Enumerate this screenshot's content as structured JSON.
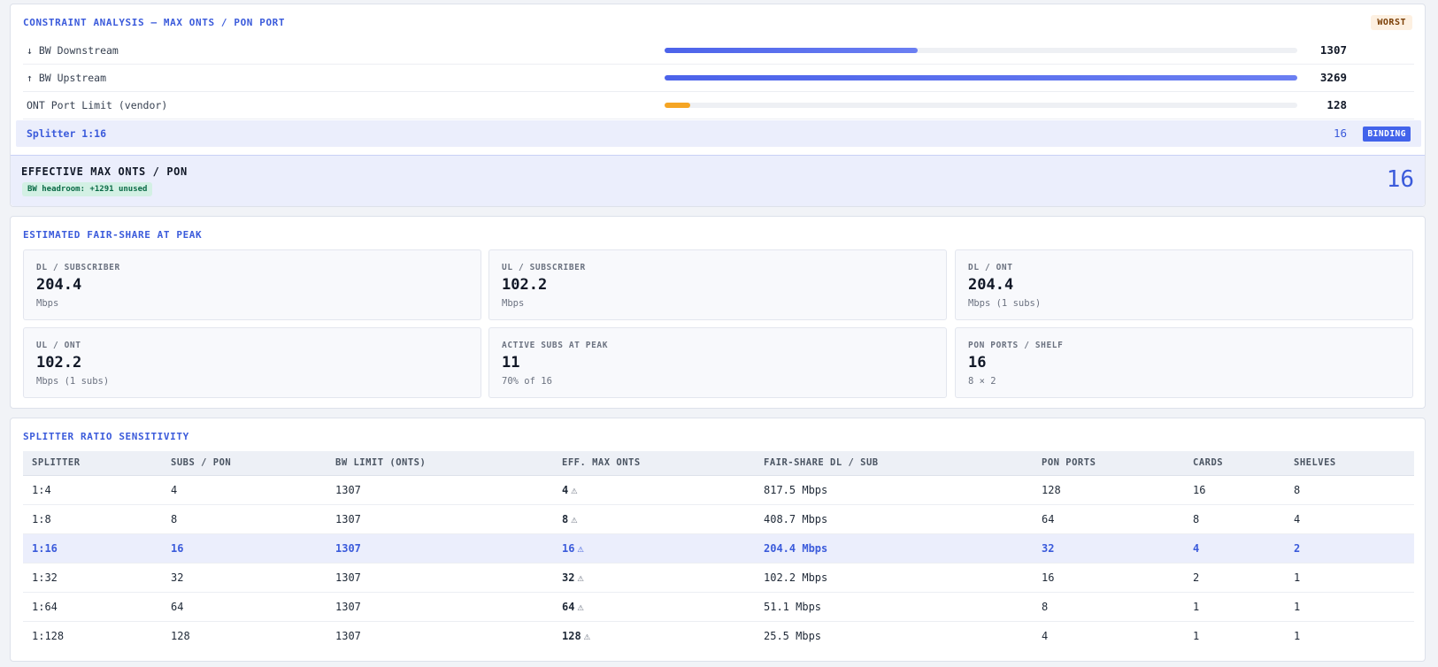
{
  "constraint": {
    "title": "CONSTRAINT ANALYSIS — MAX ONTS / PON PORT",
    "worst_badge": "WORST",
    "rows": [
      {
        "label": "↓ BW Downstream",
        "value": "1307",
        "fill_fraction": 0.4
      },
      {
        "label": "↑ BW Upstream",
        "value": "3269",
        "fill_fraction": 1.0
      },
      {
        "label": "ONT Port Limit (vendor)",
        "value": "128",
        "fill_fraction": 0.04
      }
    ],
    "binding": {
      "label": "Splitter 1:16",
      "value": "16",
      "badge": "BINDING"
    },
    "effective": {
      "title": "EFFECTIVE MAX ONTS / PON",
      "headroom": "BW headroom: +1291 unused",
      "value": "16"
    }
  },
  "fairshare": {
    "title": "ESTIMATED FAIR-SHARE AT PEAK",
    "cards": [
      {
        "label": "DL / SUBSCRIBER",
        "value": "204.4",
        "unit": "Mbps"
      },
      {
        "label": "UL / SUBSCRIBER",
        "value": "102.2",
        "unit": "Mbps"
      },
      {
        "label": "DL / ONT",
        "value": "204.4",
        "unit": "Mbps (1 subs)"
      },
      {
        "label": "UL / ONT",
        "value": "102.2",
        "unit": "Mbps (1 subs)"
      },
      {
        "label": "ACTIVE SUBS AT PEAK",
        "value": "11",
        "unit": "70% of 16"
      },
      {
        "label": "PON PORTS / SHELF",
        "value": "16",
        "unit": "8 × 2"
      }
    ]
  },
  "sensitivity": {
    "title": "SPLITTER RATIO SENSITIVITY",
    "columns": [
      "SPLITTER",
      "SUBS / PON",
      "BW LIMIT (ONTS)",
      "EFF. MAX ONTS",
      "FAIR-SHARE DL / SUB",
      "PON PORTS",
      "CARDS",
      "SHELVES"
    ],
    "warn_icon": "⚠",
    "rows": [
      {
        "splitter": "1:4",
        "subs": "4",
        "bw": "1307",
        "eff": "4",
        "dl": "817.5 Mbps",
        "pon": "128",
        "cards": "16",
        "shelves": "8"
      },
      {
        "splitter": "1:8",
        "subs": "8",
        "bw": "1307",
        "eff": "8",
        "dl": "408.7 Mbps",
        "pon": "64",
        "cards": "8",
        "shelves": "4"
      },
      {
        "splitter": "1:16",
        "subs": "16",
        "bw": "1307",
        "eff": "16",
        "dl": "204.4 Mbps",
        "pon": "32",
        "cards": "4",
        "shelves": "2"
      },
      {
        "splitter": "1:32",
        "subs": "32",
        "bw": "1307",
        "eff": "32",
        "dl": "102.2 Mbps",
        "pon": "16",
        "cards": "2",
        "shelves": "1"
      },
      {
        "splitter": "1:64",
        "subs": "64",
        "bw": "1307",
        "eff": "64",
        "dl": "51.1 Mbps",
        "pon": "8",
        "cards": "1",
        "shelves": "1"
      },
      {
        "splitter": "1:128",
        "subs": "128",
        "bw": "1307",
        "eff": "128",
        "dl": "25.5 Mbps",
        "pon": "4",
        "cards": "1",
        "shelves": "1"
      }
    ]
  }
}
